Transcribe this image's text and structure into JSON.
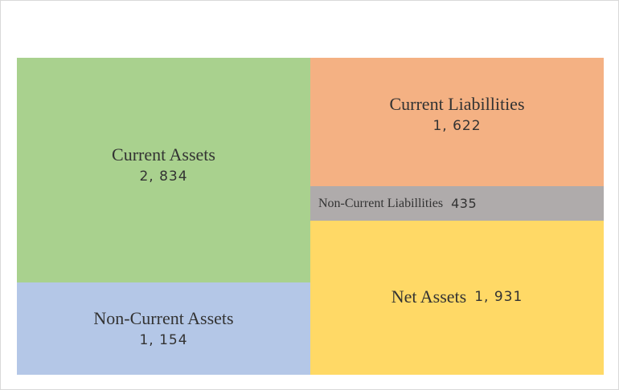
{
  "chart_data": {
    "type": "treemap",
    "title": "",
    "unit": "",
    "blocks": [
      {
        "key": "current_assets",
        "label": "Current Assets",
        "value": "2, 834",
        "numeric": 2834,
        "color": "#a9d18e",
        "side": "assets"
      },
      {
        "key": "non_current_assets",
        "label": "Non-Current Assets",
        "value": "1, 154",
        "numeric": 1154,
        "color": "#b4c7e7",
        "side": "assets"
      },
      {
        "key": "current_liabilities",
        "label": "Current Liabillities",
        "value": "1, 622",
        "numeric": 1622,
        "color": "#f4b183",
        "side": "liabilities_and_net_assets"
      },
      {
        "key": "non_current_liabilities",
        "label": "Non-Current Liabillities",
        "value": "435",
        "numeric": 435,
        "color": "#afabab",
        "side": "liabilities_and_net_assets"
      },
      {
        "key": "net_assets",
        "label": "Net Assets",
        "value": "1, 931",
        "numeric": 1931,
        "color": "#ffd966",
        "side": "liabilities_and_net_assets"
      }
    ]
  }
}
